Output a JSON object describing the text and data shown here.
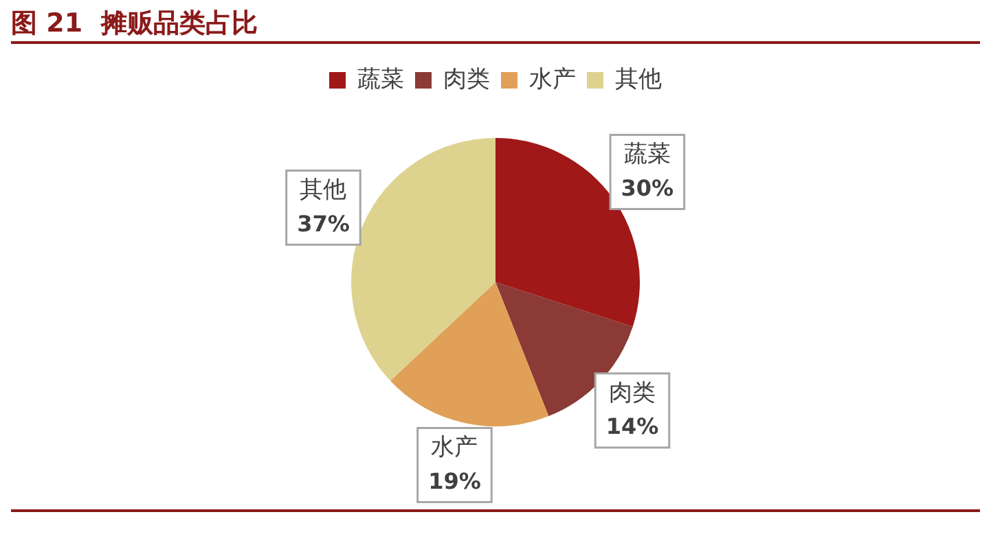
{
  "chart_data": {
    "type": "pie",
    "title": "图 21  摊贩品类占比",
    "categories": [
      "蔬菜",
      "肉类",
      "水产",
      "其他"
    ],
    "values": [
      30,
      14,
      19,
      37
    ],
    "colors": [
      "#a01818",
      "#8b3a35",
      "#e0a057",
      "#ddd38f"
    ],
    "value_labels": [
      "30%",
      "14%",
      "19%",
      "37%"
    ],
    "legend": "top"
  }
}
